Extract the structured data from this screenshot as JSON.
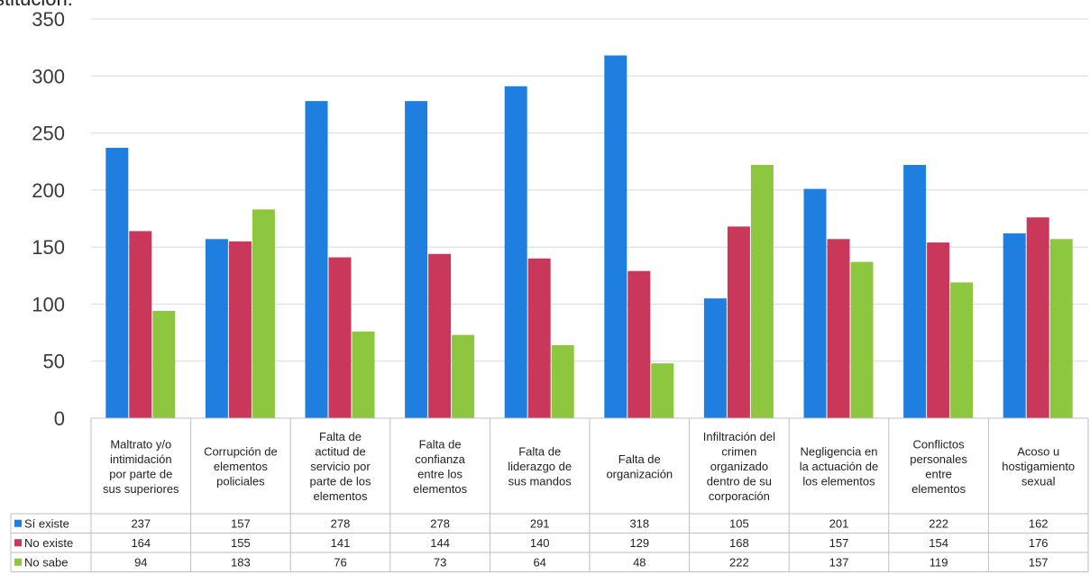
{
  "caption_fragment": "stitución:",
  "chart_data": {
    "type": "bar",
    "categories": [
      "Maltrato y/o intimidación por parte de sus superiores",
      "Corrupción de elementos policiales",
      "Falta de actitud de servicio por parte de los elementos",
      "Falta de confianza entre los elementos",
      "Falta de liderazgo de sus mandos",
      "Falta de organización",
      "Infiltración del crimen organizado dentro de su corporación",
      "Negligencia en la actuación de los elementos",
      "Conflictos personales entre elementos",
      "Acoso u hostigamiento sexual"
    ],
    "category_lines": [
      [
        "Maltrato y/o",
        "intimidación",
        "por parte de",
        "sus superiores"
      ],
      [
        "Corrupción de",
        "elementos",
        "policiales"
      ],
      [
        "Falta de",
        "actitud de",
        "servicio por",
        "parte de los",
        "elementos"
      ],
      [
        "Falta de",
        "confianza",
        "entre los",
        "elementos"
      ],
      [
        "Falta de",
        "liderazgo de",
        "sus mandos"
      ],
      [
        "Falta de",
        "organización"
      ],
      [
        "Infiltración del",
        "crimen",
        "organizado",
        "dentro de su",
        "corporación"
      ],
      [
        "Negligencia en",
        "la actuación de",
        "los elementos"
      ],
      [
        "Conflictos",
        "personales",
        "entre",
        "elementos"
      ],
      [
        "Acoso u",
        "hostigamiento",
        "sexual"
      ]
    ],
    "series": [
      {
        "name": "Sí existe",
        "color": "#1f7fe0",
        "values": [
          237,
          157,
          278,
          278,
          291,
          318,
          105,
          201,
          222,
          162
        ]
      },
      {
        "name": "No existe",
        "color": "#c9385a",
        "values": [
          164,
          155,
          141,
          144,
          140,
          129,
          168,
          157,
          154,
          176
        ]
      },
      {
        "name": "No sabe",
        "color": "#8dc63f",
        "values": [
          94,
          183,
          76,
          73,
          64,
          48,
          222,
          137,
          119,
          157
        ]
      }
    ],
    "ylim": [
      0,
      350
    ],
    "yticks": [
      0,
      50,
      100,
      150,
      200,
      250,
      300,
      350
    ],
    "grid": true,
    "legend": "data-table",
    "title": "",
    "xlabel": "",
    "ylabel": ""
  }
}
